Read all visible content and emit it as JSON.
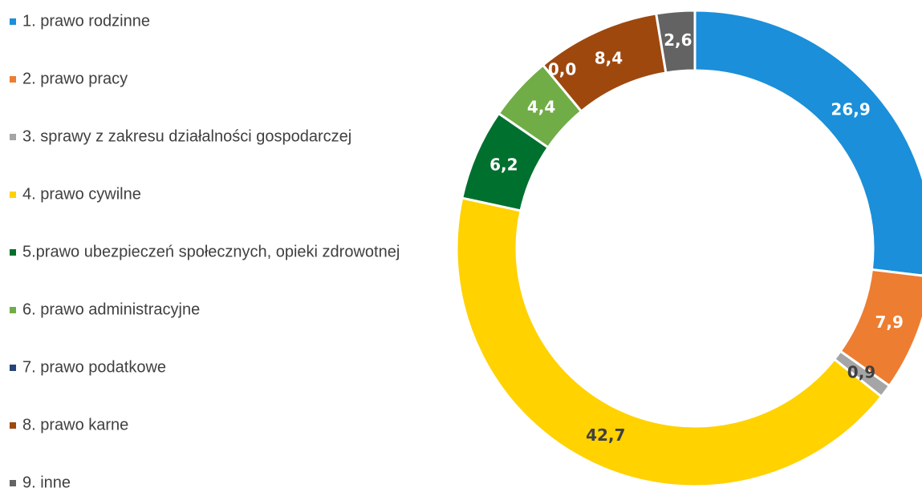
{
  "chart_data": {
    "type": "donut",
    "categories": [
      "1. prawo rodzinne",
      "2. prawo pracy",
      "3. sprawy z zakresu działalności gospodarczej",
      "4. prawo cywilne",
      "5.prawo ubezpieczeń społecznych, opieki zdrowotnej",
      "6. prawo administracyjne",
      "7. prawo podatkowe",
      "8. prawo karne",
      "9. inne"
    ],
    "values": [
      26.9,
      7.9,
      0.9,
      42.7,
      6.2,
      4.4,
      0.0,
      8.4,
      2.6
    ],
    "value_labels": [
      "26,9",
      "7,9",
      "0,9",
      "42,7",
      "6,2",
      "4,4",
      "0,0",
      "8,4",
      "2,6"
    ],
    "colors": [
      "#1b8fd9",
      "#ed7d31",
      "#a5a5a5",
      "#ffd200",
      "#00702e",
      "#70ad47",
      "#264478",
      "#9e480e",
      "#636363"
    ],
    "legend": "left"
  }
}
